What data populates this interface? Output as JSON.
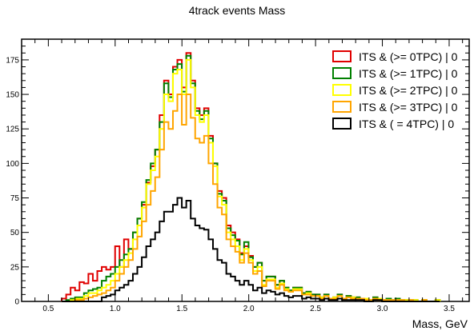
{
  "chart_data": {
    "type": "step",
    "title": "4track events Mass",
    "xlabel": "Mass, GeV",
    "ylabel": "",
    "xlim": [
      0.3,
      3.65
    ],
    "ylim": [
      0,
      190
    ],
    "x_ticks": [
      0.5,
      1.0,
      1.5,
      2.0,
      2.5,
      3.0,
      3.5
    ],
    "x_tick_labels": [
      "0.5",
      "1.0",
      "1.5",
      "2.0",
      "2.5",
      "3.0",
      "3.5"
    ],
    "y_ticks": [
      0,
      25,
      50,
      75,
      100,
      125,
      150,
      175
    ],
    "y_tick_labels": [
      "0",
      "25",
      "50",
      "75",
      "100",
      "125",
      "150",
      "175"
    ],
    "grid": false,
    "legend_position": "top-right",
    "bin_start": 0.6,
    "bin_width": 0.0333,
    "series": [
      {
        "name": "ITS & (>= 0TPC) | 0",
        "color": "#e00000",
        "values": [
          2,
          5,
          10,
          8,
          14,
          13,
          20,
          15,
          22,
          25,
          23,
          25,
          40,
          25,
          45,
          38,
          50,
          60,
          70,
          86,
          98,
          110,
          135,
          160,
          150,
          170,
          175,
          155,
          180,
          160,
          140,
          135,
          140,
          120,
          100,
          80,
          75,
          55,
          50,
          45,
          35,
          40,
          33,
          25,
          28,
          15,
          18,
          18,
          12,
          15,
          10,
          8,
          10,
          10,
          6,
          7,
          5,
          5,
          3,
          5,
          2,
          3,
          5,
          2,
          4,
          3,
          3,
          2,
          2,
          1,
          3,
          2,
          1,
          2,
          1,
          2,
          1,
          1,
          1,
          1,
          0,
          1,
          0,
          0,
          1
        ]
      },
      {
        "name": "ITS & (>= 1TPC) | 0",
        "color": "#008000",
        "values": [
          0,
          1,
          2,
          3,
          3,
          6,
          8,
          9,
          10,
          15,
          18,
          20,
          25,
          30,
          34,
          38,
          50,
          60,
          72,
          88,
          100,
          110,
          130,
          158,
          148,
          168,
          172,
          152,
          178,
          158,
          138,
          132,
          138,
          118,
          100,
          78,
          73,
          53,
          48,
          44,
          34,
          43,
          32,
          25,
          28,
          15,
          18,
          18,
          12,
          15,
          10,
          8,
          10,
          10,
          6,
          7,
          5,
          5,
          3,
          5,
          2,
          3,
          5,
          2,
          4,
          3,
          3,
          2,
          2,
          1,
          3,
          2,
          1,
          2,
          1,
          2,
          1,
          1,
          1,
          1,
          0,
          1,
          0,
          0,
          1
        ]
      },
      {
        "name": "ITS & (>= 2TPC) | 0",
        "color": "#ffff00",
        "values": [
          0,
          0,
          1,
          2,
          2,
          4,
          6,
          6,
          8,
          10,
          12,
          15,
          20,
          25,
          30,
          35,
          45,
          55,
          68,
          85,
          95,
          105,
          125,
          150,
          145,
          165,
          168,
          150,
          175,
          155,
          135,
          130,
          135,
          115,
          98,
          76,
          70,
          50,
          45,
          40,
          30,
          38,
          30,
          22,
          25,
          12,
          16,
          16,
          10,
          13,
          9,
          7,
          9,
          9,
          5,
          6,
          4,
          4,
          3,
          4,
          2,
          3,
          4,
          2,
          3,
          3,
          2,
          2,
          2,
          1,
          2,
          2,
          1,
          1,
          1,
          1,
          1,
          1,
          1,
          1,
          0,
          1,
          0,
          0,
          1
        ]
      },
      {
        "name": "ITS & (>= 3TPC) | 0",
        "color": "#ffa500",
        "values": [
          0,
          0,
          0,
          1,
          1,
          2,
          3,
          4,
          5,
          6,
          8,
          10,
          15,
          20,
          25,
          30,
          38,
          47,
          58,
          70,
          80,
          90,
          110,
          130,
          125,
          138,
          150,
          128,
          150,
          133,
          118,
          115,
          120,
          100,
          85,
          68,
          63,
          45,
          40,
          36,
          28,
          35,
          28,
          20,
          22,
          11,
          15,
          15,
          9,
          12,
          8,
          7,
          8,
          8,
          5,
          5,
          4,
          4,
          2,
          4,
          2,
          2,
          4,
          2,
          3,
          2,
          2,
          2,
          1,
          1,
          2,
          1,
          1,
          1,
          1,
          1,
          1,
          0,
          1,
          0,
          0,
          1,
          0,
          0,
          0
        ]
      },
      {
        "name": "ITS & ( =  4TPC) | 0",
        "color": "#000000",
        "values": [
          0,
          0,
          0,
          0,
          0,
          0,
          0,
          0,
          0,
          3,
          4,
          5,
          8,
          10,
          12,
          15,
          20,
          25,
          32,
          40,
          45,
          50,
          58,
          65,
          65,
          70,
          75,
          68,
          73,
          60,
          55,
          53,
          52,
          45,
          38,
          30,
          28,
          20,
          18,
          15,
          12,
          15,
          12,
          8,
          10,
          6,
          8,
          7,
          5,
          6,
          4,
          3,
          4,
          4,
          2,
          3,
          2,
          2,
          1,
          2,
          1,
          1,
          2,
          1,
          1,
          1,
          1,
          1,
          0,
          0,
          1,
          1,
          0,
          0,
          0,
          0,
          0,
          0,
          0,
          0,
          0,
          0,
          0,
          0,
          0
        ]
      }
    ]
  }
}
